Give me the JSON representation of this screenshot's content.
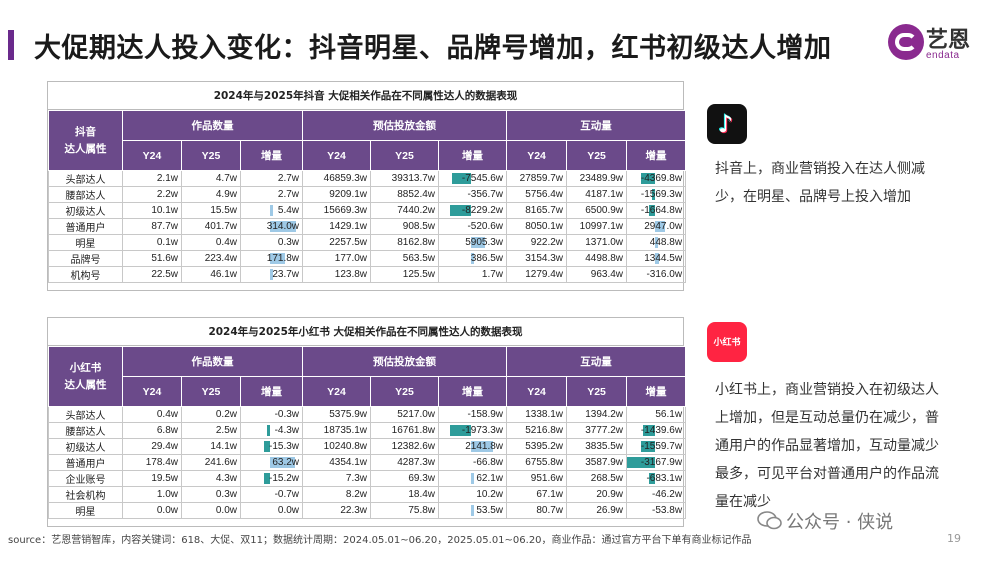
{
  "page": {
    "title": "大促期达人投入变化：抖音明星、品牌号增加，红书初级达人增加",
    "page_number": "19"
  },
  "logo": {
    "cn": "艺恩",
    "en": "endata",
    "brand_color": "#8a2a8f"
  },
  "colors": {
    "header_bg": "#6b4a8a",
    "positive_bar": "#9ec9e6",
    "negative_bar": "#2e9c9a",
    "accent": "#6a2a8c"
  },
  "douyin_table": {
    "title": "2024年与2025年抖音 大促相关作品在不同属性达人的数据表现",
    "attr_header": "抖音\n达人属性",
    "groups": [
      "作品数量",
      "预估投放金额",
      "互动量"
    ],
    "subheaders": [
      "Y24",
      "Y25",
      "增量",
      "Y24",
      "Y25",
      "增量",
      "Y24",
      "Y25",
      "增量"
    ],
    "rows": [
      {
        "label": "头部达人",
        "cells": [
          "2.1w",
          "4.7w",
          "2.7w",
          "46859.3w",
          "39313.7w",
          "-7545.6w",
          "27859.7w",
          "23489.9w",
          "-4369.8w"
        ],
        "bars": [
          0,
          0,
          0.0,
          0,
          0,
          -0.6,
          0,
          0,
          -0.5
        ]
      },
      {
        "label": "腰部达人",
        "cells": [
          "2.2w",
          "4.9w",
          "2.7w",
          "9209.1w",
          "8852.4w",
          "-356.7w",
          "5756.4w",
          "4187.1w",
          "-1569.3w"
        ],
        "bars": [
          0,
          0,
          0.0,
          0,
          0,
          0,
          0,
          0,
          -0.05
        ]
      },
      {
        "label": "初级达人",
        "cells": [
          "10.1w",
          "15.5w",
          "5.4w",
          "15669.3w",
          "7440.2w",
          "-8229.2w",
          "8165.7w",
          "6500.9w",
          "-1664.8w"
        ],
        "bars": [
          0,
          0,
          0.02,
          0,
          0,
          -0.65,
          0,
          0,
          -0.2
        ]
      },
      {
        "label": "普通用户",
        "cells": [
          "87.7w",
          "401.7w",
          "314.0w",
          "1429.1w",
          "908.5w",
          "-520.6w",
          "8050.1w",
          "10997.1w",
          "2947.0w"
        ],
        "bars": [
          0,
          0,
          0.9,
          0,
          0,
          0,
          0,
          0,
          0.35
        ]
      },
      {
        "label": "明星",
        "cells": [
          "0.1w",
          "0.4w",
          "0.3w",
          "2257.5w",
          "8162.8w",
          "5905.3w",
          "922.2w",
          "1371.0w",
          "448.8w"
        ],
        "bars": [
          0,
          0,
          0,
          0,
          0,
          0.45,
          0,
          0,
          0.05
        ]
      },
      {
        "label": "品牌号",
        "cells": [
          "51.6w",
          "223.4w",
          "171.8w",
          "177.0w",
          "563.5w",
          "386.5w",
          "3154.3w",
          "4498.8w",
          "1344.5w"
        ],
        "bars": [
          0,
          0,
          0.5,
          0,
          0,
          0.03,
          0,
          0,
          0.15
        ]
      },
      {
        "label": "机构号",
        "cells": [
          "22.5w",
          "46.1w",
          "23.7w",
          "123.8w",
          "125.5w",
          "1.7w",
          "1279.4w",
          "963.4w",
          "-316.0w"
        ],
        "bars": [
          0,
          0,
          0.07,
          0,
          0,
          0,
          0,
          0,
          0
        ]
      }
    ]
  },
  "xhs_table": {
    "title": "2024年与2025年小红书 大促相关作品在不同属性达人的数据表现",
    "attr_header": "小红书\n达人属性",
    "groups": [
      "作品数量",
      "预估投放金额",
      "互动量"
    ],
    "subheaders": [
      "Y24",
      "Y25",
      "增量",
      "Y24",
      "Y25",
      "增量",
      "Y24",
      "Y25",
      "增量"
    ],
    "rows": [
      {
        "label": "头部达人",
        "cells": [
          "0.4w",
          "0.2w",
          "-0.3w",
          "5375.9w",
          "5217.0w",
          "-158.9w",
          "1338.1w",
          "1394.2w",
          "56.1w"
        ],
        "bars": [
          0,
          0,
          0,
          0,
          0,
          0,
          0,
          0,
          0
        ]
      },
      {
        "label": "腰部达人",
        "cells": [
          "6.8w",
          "2.5w",
          "-4.3w",
          "18735.1w",
          "16761.8w",
          "-1973.3w",
          "5216.8w",
          "3777.2w",
          "-1439.6w"
        ],
        "bars": [
          0,
          0,
          -0.05,
          0,
          0,
          -0.65,
          0,
          0,
          -0.45
        ]
      },
      {
        "label": "初级达人",
        "cells": [
          "29.4w",
          "14.1w",
          "-15.3w",
          "10240.8w",
          "12382.6w",
          "2141.8w",
          "5395.2w",
          "3835.5w",
          "-1559.7w"
        ],
        "bars": [
          0,
          0,
          -0.2,
          0,
          0,
          0.7,
          0,
          0,
          -0.5
        ]
      },
      {
        "label": "普通用户",
        "cells": [
          "178.4w",
          "241.6w",
          "63.2w",
          "4354.1w",
          "4287.3w",
          "-66.8w",
          "6755.8w",
          "3587.9w",
          "-3167.9w"
        ],
        "bars": [
          0,
          0,
          0.85,
          0,
          0,
          0,
          0,
          0,
          -1.0
        ]
      },
      {
        "label": "企业账号",
        "cells": [
          "19.5w",
          "4.3w",
          "-15.2w",
          "7.3w",
          "69.3w",
          "62.1w",
          "951.6w",
          "268.5w",
          "-683.1w"
        ],
        "bars": [
          0,
          0,
          -0.2,
          0,
          0,
          0.02,
          0,
          0,
          -0.2
        ]
      },
      {
        "label": "社会机构",
        "cells": [
          "1.0w",
          "0.3w",
          "-0.7w",
          "8.2w",
          "18.4w",
          "10.2w",
          "67.1w",
          "20.9w",
          "-46.2w"
        ],
        "bars": [
          0,
          0,
          0,
          0,
          0,
          0,
          0,
          0,
          0
        ]
      },
      {
        "label": "明星",
        "cells": [
          "0.0w",
          "0.0w",
          "0.0w",
          "22.3w",
          "75.8w",
          "53.5w",
          "80.7w",
          "26.9w",
          "-53.8w"
        ],
        "bars": [
          0,
          0,
          0,
          0,
          0,
          0.02,
          0,
          0,
          0
        ]
      }
    ]
  },
  "douyin_note": "抖音上，商业营销投入在达人侧减少，在明星、品牌号上投入增加",
  "xhs_note": "小红书上，商业营销投入在初级达人上增加，但是互动总量仍在减少，普通用户的作品显著增加，互动量减少最多，可见平台对普通用户的作品流量在减少",
  "xhs_icon_text": "小红书",
  "source": "source：艺恩营销智库，内容关键词：618、大促、双11；数据统计周期：2024.05.01~06.20，2025.05.01~06.20，商业作品：通过官方平台下单有商业标记作品",
  "watermark": "公众号 · 侠说"
}
